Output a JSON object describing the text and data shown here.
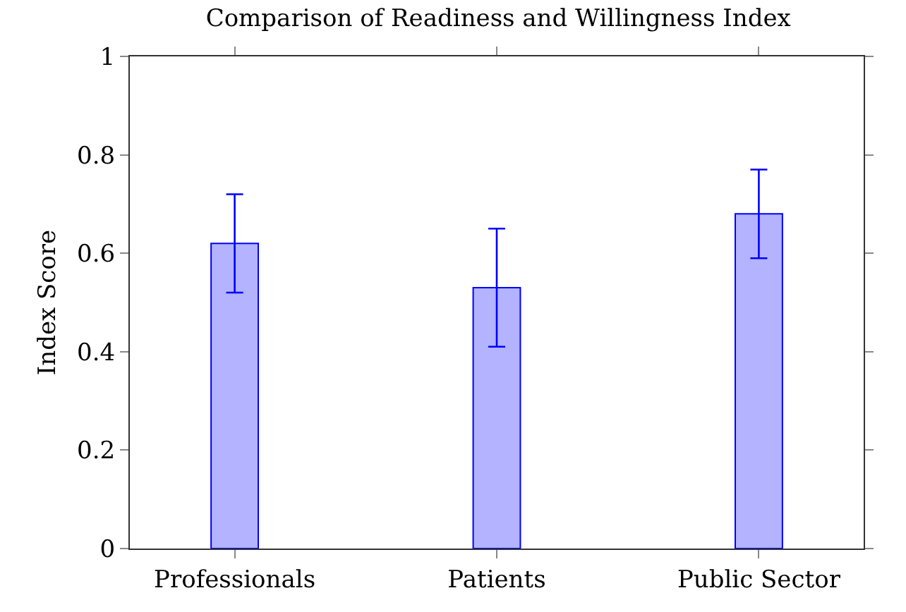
{
  "chart_data": {
    "type": "bar",
    "title": "Comparison of Readiness and Willingness Index",
    "ylabel": "Index Score",
    "categories": [
      "Professionals",
      "Patients",
      "Public Sector"
    ],
    "values": [
      0.62,
      0.53,
      0.68
    ],
    "errors": [
      0.1,
      0.12,
      0.09
    ],
    "color": "#b3b3ff",
    "ylim": [
      0,
      1
    ],
    "yticks": [
      0,
      0.2,
      0.4,
      0.6,
      0.8,
      1
    ],
    "grid": false
  }
}
